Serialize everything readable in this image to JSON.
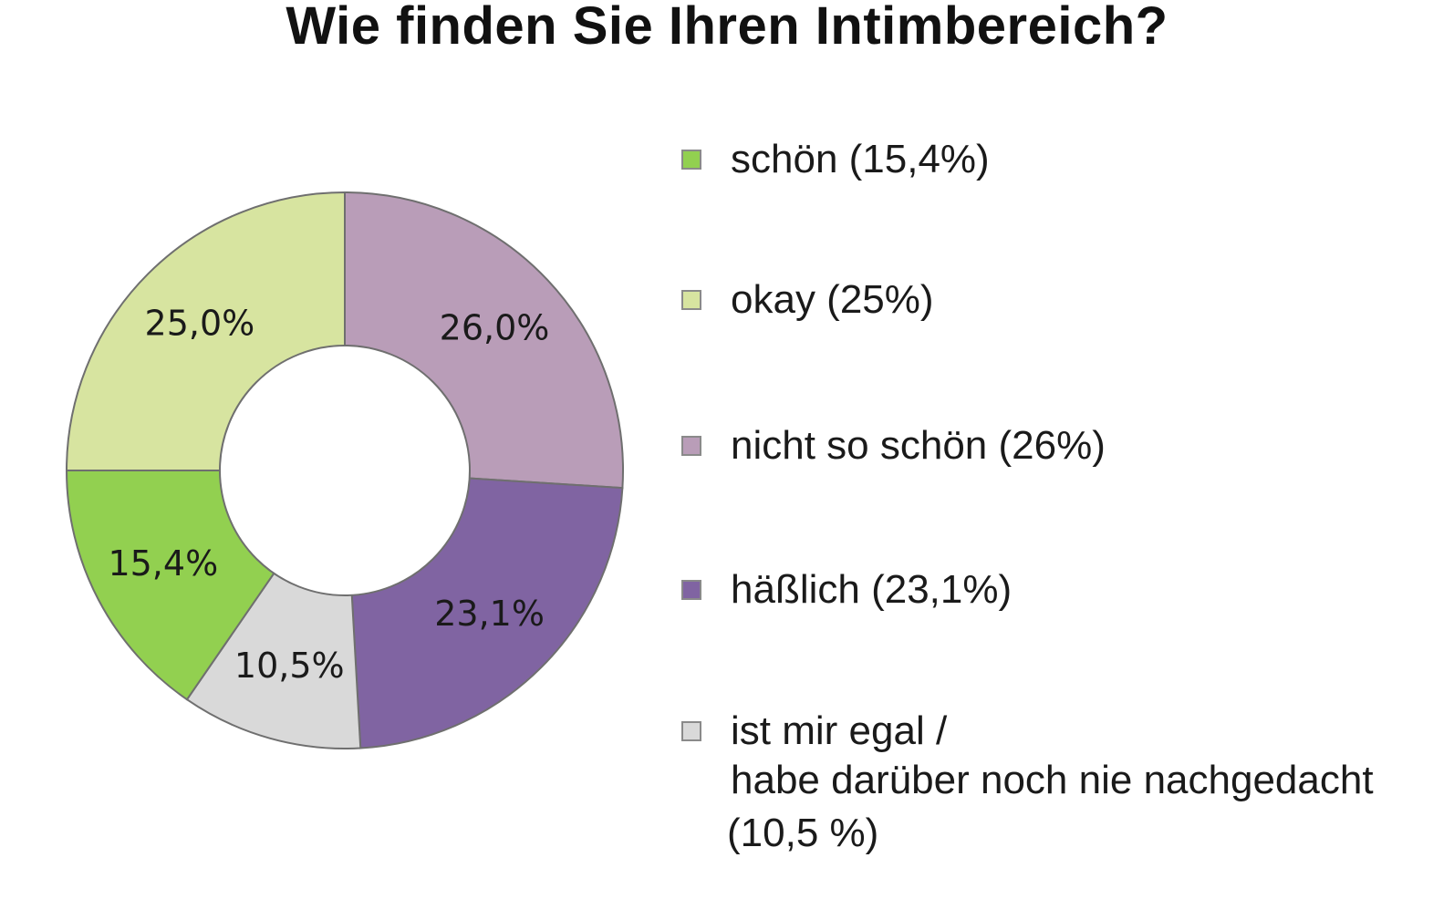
{
  "chart_data": {
    "type": "pie",
    "title": "Wie finden Sie Ihren Intimbereich?",
    "donut": true,
    "legend_position": "right",
    "slices": [
      {
        "value": 26.0,
        "label": "26,0%",
        "color": "#b99db8"
      },
      {
        "value": 23.1,
        "label": "23,1%",
        "color": "#8064a2"
      },
      {
        "value": 10.5,
        "label": "10,5%",
        "color": "#d9d9d9"
      },
      {
        "value": 15.4,
        "label": "15,4%",
        "color": "#92d050"
      },
      {
        "value": 25.0,
        "label": "25,0%",
        "color": "#d7e4a0"
      }
    ],
    "legend": [
      {
        "lines": [
          "schön (15,4%)"
        ],
        "color": "#92d050"
      },
      {
        "lines": [
          "okay (25%)"
        ],
        "color": "#d7e4a0"
      },
      {
        "lines": [
          "nicht so schön (26%)"
        ],
        "color": "#b99db8"
      },
      {
        "lines": [
          "häßlich (23,1%)"
        ],
        "color": "#8064a2"
      },
      {
        "lines": [
          "ist mir egal /",
          "habe darüber noch nie nachgedacht",
          "(10,5 %)"
        ],
        "color": "#d9d9d9"
      }
    ]
  }
}
